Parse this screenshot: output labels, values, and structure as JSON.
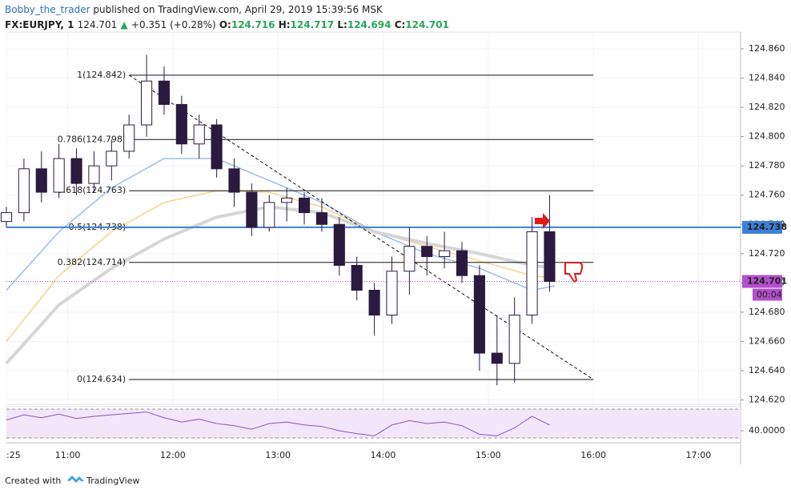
{
  "header": {
    "author": "Bobby_the_trader",
    "published": "published on TradingView.com, April 29, 2019 15:39:56 MSK",
    "symbol": "FX:EURJPY, 1",
    "last": 124.701,
    "change": "+0.351 (+0.28%)",
    "ohlc": [
      {
        "label": "O:",
        "value": "124.716"
      },
      {
        "label": "H:",
        "value": "124.717"
      },
      {
        "label": "L:",
        "value": "124.694"
      },
      {
        "label": "C:",
        "value": "124.701"
      }
    ]
  },
  "chart_data": [
    {
      "type": "candlestick",
      "x": [
        "10:25",
        "10:35",
        "10:45",
        "10:55",
        "11:05",
        "11:15",
        "11:25",
        "11:35",
        "11:45",
        "11:55",
        "12:05",
        "12:15",
        "12:25",
        "12:35",
        "12:45",
        "12:55",
        "13:05",
        "13:15",
        "13:25",
        "13:35",
        "13:45",
        "13:55",
        "14:05",
        "14:15",
        "14:25",
        "14:35",
        "14:45",
        "14:55",
        "15:05",
        "15:15",
        "15:25",
        "15:35"
      ],
      "open": [
        124.742,
        124.748,
        124.778,
        124.762,
        124.785,
        124.768,
        124.78,
        124.79,
        124.808,
        124.838,
        124.822,
        124.795,
        124.808,
        124.778,
        124.762,
        124.738,
        124.755,
        124.758,
        124.748,
        124.74,
        124.712,
        124.695,
        124.678,
        124.708,
        124.725,
        124.718,
        124.722,
        124.705,
        124.652,
        124.645,
        124.678,
        124.735
      ],
      "high": [
        124.752,
        124.785,
        124.79,
        124.795,
        124.792,
        124.79,
        124.798,
        124.815,
        124.856,
        124.848,
        124.828,
        124.815,
        124.812,
        124.785,
        124.768,
        124.76,
        124.765,
        124.762,
        124.758,
        124.745,
        124.718,
        124.7,
        124.718,
        124.738,
        124.732,
        124.735,
        124.728,
        124.712,
        124.678,
        124.69,
        124.745,
        124.76
      ],
      "low": [
        124.738,
        124.742,
        124.755,
        124.758,
        124.76,
        124.762,
        124.77,
        124.785,
        124.8,
        124.815,
        124.788,
        124.785,
        124.772,
        124.752,
        124.732,
        124.735,
        124.742,
        124.74,
        124.735,
        124.705,
        124.688,
        124.664,
        124.672,
        124.692,
        124.705,
        124.71,
        124.7,
        124.64,
        124.63,
        124.632,
        124.672,
        124.694
      ],
      "close": [
        124.748,
        124.778,
        124.762,
        124.785,
        124.768,
        124.78,
        124.79,
        124.808,
        124.838,
        124.822,
        124.795,
        124.808,
        124.778,
        124.762,
        124.738,
        124.755,
        124.758,
        124.748,
        124.74,
        124.712,
        124.695,
        124.678,
        124.708,
        124.725,
        124.718,
        124.722,
        124.705,
        124.652,
        124.645,
        124.678,
        124.735,
        124.701
      ],
      "up_color": "#ffffff",
      "down_color": "#2b1a3f",
      "moving_averages": [
        {
          "x": [
            "10:25",
            "10:55",
            "11:25",
            "11:55",
            "12:25",
            "12:55",
            "13:25",
            "13:55",
            "14:25",
            "14:55",
            "15:25",
            "15:38"
          ],
          "values": [
            124.695,
            124.735,
            124.765,
            124.785,
            124.785,
            124.77,
            124.755,
            124.735,
            124.72,
            124.71,
            124.695,
            124.698
          ],
          "color": "#9dbde9",
          "width": 1.5
        },
        {
          "x": [
            "10:25",
            "10:55",
            "11:25",
            "11:55",
            "12:25",
            "12:55",
            "13:25",
            "13:55",
            "14:25",
            "14:55",
            "15:25",
            "15:38"
          ],
          "values": [
            124.66,
            124.705,
            124.735,
            124.755,
            124.763,
            124.762,
            124.752,
            124.735,
            124.725,
            124.715,
            124.705,
            124.703
          ],
          "color": "#f3d48c",
          "width": 1.5
        },
        {
          "x": [
            "10:25",
            "10:55",
            "11:25",
            "11:55",
            "12:25",
            "12:55",
            "13:25",
            "13:55",
            "14:25",
            "14:55",
            "15:25",
            "15:38"
          ],
          "values": [
            124.645,
            124.685,
            124.71,
            124.73,
            124.745,
            124.752,
            124.748,
            124.735,
            124.727,
            124.72,
            124.712,
            124.71
          ],
          "color": "#d6d6d6",
          "width": 4
        }
      ],
      "fib_x": [
        "11:35",
        "16:00"
      ],
      "fib_levels": [
        {
          "label": "1(124.842)",
          "value": 124.842
        },
        {
          "label": "0.786(124.798)",
          "value": 124.798
        },
        {
          "label": "0.618(124.763)",
          "value": 124.763
        },
        {
          "label": "0.5(124.738)",
          "value": 124.738
        },
        {
          "label": "0.382(124.714)",
          "value": 124.714
        },
        {
          "label": "0(124.634)",
          "value": 124.634
        }
      ],
      "trendline": {
        "x": [
          "11:35",
          "16:00"
        ],
        "values": [
          124.842,
          124.634
        ]
      },
      "price_lines": [
        {
          "value": 124.738,
          "color": "#3d7fd9"
        },
        {
          "value": 124.701,
          "color": "#b24fcb"
        }
      ],
      "countdown": "00:04",
      "xlim": [
        "10:25",
        "17:24"
      ],
      "ylim": [
        124.617,
        124.8715
      ],
      "yticks": [
        {
          "value": 124.62,
          "label": "124.620"
        },
        {
          "value": 124.64,
          "label": "124.640"
        },
        {
          "value": 124.66,
          "label": "124.660"
        },
        {
          "value": 124.68,
          "label": "124.680"
        },
        {
          "value": 124.7,
          "label": "124.700"
        },
        {
          "value": 124.72,
          "label": "124.720"
        },
        {
          "value": 124.74,
          "label": "124.740"
        },
        {
          "value": 124.76,
          "label": "124.760"
        },
        {
          "value": 124.78,
          "label": "124.780"
        },
        {
          "value": 124.8,
          "label": "124.800"
        },
        {
          "value": 124.82,
          "label": "124.820"
        },
        {
          "value": 124.84,
          "label": "124.840"
        },
        {
          "value": 124.86,
          "label": "124.860"
        }
      ],
      "xticks": [
        {
          "value": "10:25",
          "label": ":25"
        },
        "11:00",
        "12:00",
        "13:00",
        "14:00",
        "15:00",
        "16:00",
        "17:00"
      ]
    },
    {
      "type": "line",
      "x": [
        "10:25",
        "10:35",
        "10:45",
        "10:55",
        "11:05",
        "11:15",
        "11:25",
        "11:35",
        "11:45",
        "11:55",
        "12:05",
        "12:15",
        "12:25",
        "12:35",
        "12:45",
        "12:55",
        "13:05",
        "13:15",
        "13:25",
        "13:35",
        "13:45",
        "13:55",
        "14:05",
        "14:15",
        "14:25",
        "14:35",
        "14:45",
        "14:55",
        "15:05",
        "15:15",
        "15:25",
        "15:35"
      ],
      "values": [
        55,
        62,
        58,
        63,
        57,
        60,
        62,
        64,
        66,
        58,
        52,
        56,
        50,
        47,
        42,
        50,
        52,
        48,
        46,
        40,
        36,
        33,
        48,
        54,
        50,
        52,
        47,
        35,
        33,
        44,
        60,
        48
      ],
      "color": "#8e4fc2",
      "bands": [
        30,
        70
      ],
      "ylim": [
        23.3,
        73.3
      ],
      "yticks": [
        {
          "value": 40,
          "label": "40.0000"
        }
      ]
    }
  ],
  "footer": {
    "prefix": "Created with",
    "brand": "TradingView"
  }
}
